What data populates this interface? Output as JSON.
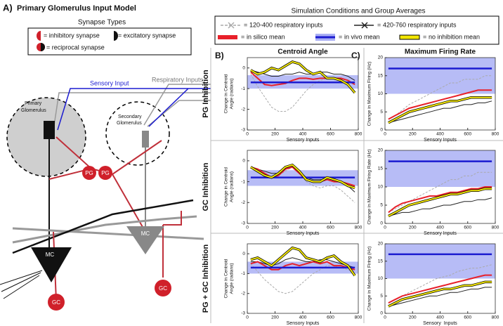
{
  "figure": {
    "panel_a": {
      "letter": "A)",
      "title": "Primary Glomerulus Input Model",
      "synapse_title": "Synapse Types",
      "synapses": [
        "= inhibitory synapse",
        "= excitatory synapse",
        "= reciprocal synapse"
      ],
      "inputs": [
        "Respiratory Inputs",
        "Sensory Input"
      ],
      "glomeruli": [
        [
          "Primary",
          "Glomerulus"
        ],
        [
          "Secondary",
          "Glomerulus"
        ]
      ],
      "cells": [
        "PG",
        "PG",
        "MC",
        "MC",
        "GC",
        "GC"
      ]
    },
    "legend_title": "Simulation Conditions and Group Averages",
    "panels": [
      "B)",
      "C)"
    ],
    "rows": [
      "PG Inhibition",
      "GC Inhibition",
      "PG + GC Inhibition"
    ]
  },
  "chart_data": [
    {
      "type": "line",
      "title": "Centroid Angle",
      "ylabel": [
        "Change in Centroid",
        "Angle (radians)"
      ],
      "xlabel": "Sensory Inputs",
      "x": [
        25,
        75,
        125,
        175,
        225,
        275,
        325,
        375,
        425,
        475,
        525,
        575,
        625,
        675,
        725,
        775
      ],
      "xlim": [
        0,
        800
      ],
      "xticks": [
        0,
        200,
        400,
        600,
        800
      ],
      "ylim": [
        -3,
        0.5
      ],
      "yticks": [
        -3,
        -2,
        -1,
        0
      ],
      "series": [
        {
          "name": "120-400 respiratory inputs",
          "color": "#aaaaaa",
          "values": [
            -0.3,
            -0.9,
            -1.4,
            -1.9,
            -2.1,
            -2.1,
            -1.9,
            -1.5,
            -1.1,
            -0.8,
            -0.6,
            -0.5,
            -0.5,
            -0.6,
            -0.7,
            -0.8
          ]
        },
        {
          "name": "420-760 respiratory inputs",
          "color": "#222222",
          "values": [
            -0.1,
            -0.2,
            -0.3,
            -0.4,
            -0.4,
            -0.3,
            -0.3,
            -0.2,
            -0.3,
            -0.3,
            -0.2,
            -0.2,
            -0.3,
            -0.3,
            -0.4,
            -0.6
          ]
        },
        {
          "name": "in silico mean",
          "color": "#e8202a",
          "values": [
            -0.2,
            -0.5,
            -0.8,
            -0.85,
            -0.8,
            -0.75,
            -0.6,
            -0.5,
            -0.5,
            -0.55,
            -0.5,
            -0.5,
            -0.5,
            -0.5,
            -0.6,
            -0.8
          ]
        },
        {
          "name": "in vivo mean",
          "color": "#1b1bd0",
          "band": [
            -1,
            -0.35
          ],
          "values": [
            -0.7,
            -0.7,
            -0.7,
            -0.7,
            -0.7,
            -0.7,
            -0.7,
            -0.7,
            -0.7,
            -0.7,
            -0.7,
            -0.7,
            -0.7,
            -0.7,
            -0.7,
            -0.7
          ]
        },
        {
          "name": "no inhibition mean",
          "color": "#f2e600",
          "values": [
            -0.1,
            -0.3,
            -0.2,
            0,
            -0.1,
            0.1,
            0.3,
            0.2,
            -0.1,
            -0.3,
            -0.2,
            -0.5,
            -0.5,
            -0.6,
            -0.8,
            -1.2
          ]
        }
      ]
    },
    {
      "type": "line",
      "title": "Maximum Firing Rate",
      "ylabel": [
        "Change in Maximum Firing (Hz)"
      ],
      "xlabel": "Sensory Inputs",
      "x": [
        25,
        75,
        125,
        175,
        225,
        275,
        325,
        375,
        425,
        475,
        525,
        575,
        625,
        675,
        725,
        775
      ],
      "xlim": [
        0,
        800
      ],
      "xticks": [
        0,
        200,
        400,
        600,
        800
      ],
      "ylim": [
        0,
        20
      ],
      "yticks": [
        0,
        5,
        10,
        15,
        20
      ],
      "series": [
        {
          "color": "#aaaaaa",
          "values": [
            3,
            4,
            5.5,
            7,
            8,
            9,
            10,
            11,
            12,
            13,
            13,
            14,
            14,
            14,
            15,
            15
          ]
        },
        {
          "color": "#222222",
          "values": [
            2,
            2.5,
            3,
            3.5,
            4,
            4.5,
            5,
            5.5,
            6,
            6,
            6.5,
            7,
            7,
            7.5,
            7.5,
            8
          ]
        },
        {
          "color": "#e8202a",
          "values": [
            3,
            4,
            5,
            6,
            6.5,
            7,
            7.5,
            8,
            8.5,
            9,
            9.5,
            10,
            10.5,
            11,
            11,
            11
          ]
        },
        {
          "color": "#1b1bd0",
          "band": [
            10,
            20
          ],
          "values": [
            17,
            17,
            17,
            17,
            17,
            17,
            17,
            17,
            17,
            17,
            17,
            17,
            17,
            17,
            17,
            17
          ]
        },
        {
          "color": "#f2e600",
          "values": [
            2,
            3,
            4,
            5,
            5.5,
            6,
            6.5,
            7,
            7.5,
            8,
            8,
            8.5,
            9,
            9,
            9,
            9
          ]
        }
      ]
    },
    {
      "type": "line",
      "ylabel": [
        "Change in Centroid",
        "Angle (radians)"
      ],
      "xlabel": "Sensory Inputs",
      "x": [
        25,
        75,
        125,
        175,
        225,
        275,
        325,
        375,
        425,
        475,
        525,
        575,
        625,
        675,
        725,
        775
      ],
      "xlim": [
        0,
        800
      ],
      "xticks": [
        0,
        200,
        400,
        600,
        800
      ],
      "ylim": [
        -3,
        0.5
      ],
      "yticks": [
        -3,
        -2,
        -1,
        0
      ],
      "series": [
        {
          "color": "#aaaaaa",
          "values": [
            -0.3,
            -0.4,
            -0.6,
            -0.8,
            -0.7,
            -0.5,
            -0.3,
            -0.6,
            -1.0,
            -1.2,
            -1.3,
            -1.2,
            -1.2,
            -1.4,
            -1.7,
            -2.0
          ]
        },
        {
          "color": "#222222",
          "values": [
            -0.3,
            -0.4,
            -0.5,
            -0.6,
            -0.6,
            -0.4,
            -0.2,
            -0.5,
            -0.8,
            -0.9,
            -0.9,
            -0.9,
            -1.0,
            -1.0,
            -1.2,
            -1.5
          ]
        },
        {
          "color": "#e8202a",
          "values": [
            -0.3,
            -0.4,
            -0.6,
            -0.8,
            -0.7,
            -0.4,
            -0.3,
            -0.6,
            -0.9,
            -1.0,
            -1.0,
            -0.9,
            -1.0,
            -1.0,
            -1.1,
            -1.2
          ]
        },
        {
          "color": "#1b1bd0",
          "band": [
            -1.2,
            -0.45
          ],
          "values": [
            -0.8,
            -0.8,
            -0.8,
            -0.8,
            -0.8,
            -0.8,
            -0.8,
            -0.8,
            -0.8,
            -0.8,
            -0.8,
            -0.8,
            -0.8,
            -0.8,
            -0.8,
            -0.8
          ]
        },
        {
          "color": "#f2e600",
          "values": [
            -0.3,
            -0.5,
            -0.7,
            -0.8,
            -0.6,
            -0.3,
            -0.2,
            -0.5,
            -0.9,
            -1.0,
            -1.0,
            -0.8,
            -0.9,
            -1.0,
            -1.2,
            -1.3
          ]
        }
      ]
    },
    {
      "type": "line",
      "ylabel": [
        "Change in Maximum Firing Rate (Hz)"
      ],
      "xlabel": "Sensory Inputs",
      "x": [
        25,
        75,
        125,
        175,
        225,
        275,
        325,
        375,
        425,
        475,
        525,
        575,
        625,
        675,
        725,
        775
      ],
      "xlim": [
        0,
        800
      ],
      "xticks": [
        0,
        200,
        400,
        600,
        800
      ],
      "ylim": [
        0,
        20
      ],
      "yticks": [
        0,
        5,
        10,
        15,
        20
      ],
      "series": [
        {
          "color": "#aaaaaa",
          "values": [
            3,
            4,
            5,
            6,
            7,
            8,
            9,
            10,
            11,
            12,
            12,
            13,
            13,
            14,
            14,
            14
          ]
        },
        {
          "color": "#222222",
          "values": [
            2,
            2.5,
            3,
            3,
            3.5,
            4,
            4,
            4.5,
            5,
            5,
            5.5,
            6,
            6,
            6.5,
            6.5,
            7
          ]
        },
        {
          "color": "#e8202a",
          "values": [
            3,
            4.5,
            5.5,
            6,
            6.5,
            7,
            7.5,
            7.5,
            8,
            8.5,
            8.5,
            9,
            9.5,
            9.5,
            10,
            10
          ]
        },
        {
          "color": "#1b1bd0",
          "band": [
            10,
            20
          ],
          "values": [
            17,
            17,
            17,
            17,
            17,
            17,
            17,
            17,
            17,
            17,
            17,
            17,
            17,
            17,
            17,
            17
          ]
        },
        {
          "color": "#f2e600",
          "values": [
            2,
            3,
            4,
            5,
            5.5,
            6,
            6.5,
            7,
            7.5,
            8,
            8,
            8.5,
            9,
            9,
            9.5,
            9.5
          ]
        }
      ]
    },
    {
      "type": "line",
      "ylabel": [
        "Change in Centroid",
        "Angle (radians)"
      ],
      "xlabel": "Sensory Inputs",
      "x": [
        25,
        75,
        125,
        175,
        225,
        275,
        325,
        375,
        425,
        475,
        525,
        575,
        625,
        675,
        725,
        775
      ],
      "xlim": [
        0,
        800
      ],
      "xticks": [
        0,
        200,
        400,
        600,
        800
      ],
      "ylim": [
        -3,
        0.5
      ],
      "yticks": [
        -3,
        -2,
        -1,
        0
      ],
      "series": [
        {
          "color": "#aaaaaa",
          "values": [
            -0.5,
            -0.9,
            -1.3,
            -1.6,
            -1.9,
            -2.0,
            -1.9,
            -1.6,
            -1.3,
            -1.0,
            -0.8,
            -0.6,
            -0.6,
            -0.7,
            -0.8,
            -0.9
          ]
        },
        {
          "color": "#222222",
          "values": [
            -0.4,
            -0.4,
            -0.5,
            -0.6,
            -0.5,
            -0.3,
            -0.2,
            -0.3,
            -0.4,
            -0.4,
            -0.3,
            -0.3,
            -0.4,
            -0.5,
            -0.6,
            -0.7
          ]
        },
        {
          "color": "#e8202a",
          "values": [
            -0.5,
            -0.4,
            -0.6,
            -0.8,
            -0.8,
            -0.6,
            -0.5,
            -0.6,
            -0.5,
            -0.4,
            -0.5,
            -0.4,
            -0.6,
            -0.6,
            -0.7,
            -0.8
          ]
        },
        {
          "color": "#1b1bd0",
          "band": [
            -1,
            -0.4
          ],
          "values": [
            -0.7,
            -0.7,
            -0.7,
            -0.7,
            -0.7,
            -0.7,
            -0.7,
            -0.7,
            -0.7,
            -0.7,
            -0.7,
            -0.7,
            -0.7,
            -0.7,
            -0.7,
            -0.7
          ]
        },
        {
          "color": "#f2e600",
          "values": [
            -0.3,
            -0.2,
            -0.4,
            -0.6,
            -0.3,
            0,
            0.3,
            0.2,
            -0.2,
            -0.3,
            -0.4,
            -0.2,
            -0.1,
            -0.4,
            -0.6,
            -1.1
          ]
        }
      ]
    },
    {
      "type": "line",
      "ylabel": [
        "Change in Maximum Firing (Hz)"
      ],
      "xlabel": "Sensory  Inputs",
      "x": [
        25,
        75,
        125,
        175,
        225,
        275,
        325,
        375,
        425,
        475,
        525,
        575,
        625,
        675,
        725,
        775
      ],
      "xlim": [
        0,
        800
      ],
      "xticks": [
        0,
        200,
        400,
        600,
        800
      ],
      "ylim": [
        0,
        20
      ],
      "yticks": [
        0,
        5,
        10,
        15,
        20
      ],
      "series": [
        {
          "color": "#aaaaaa",
          "values": [
            3,
            4,
            5,
            6,
            7,
            8,
            9,
            10,
            10.5,
            11,
            12,
            12.5,
            13,
            13,
            13.5,
            14
          ]
        },
        {
          "color": "#222222",
          "values": [
            2,
            2.5,
            3,
            3.5,
            4,
            4.5,
            5,
            5,
            5.5,
            6,
            6,
            6.5,
            7,
            7,
            7.5,
            7.5
          ]
        },
        {
          "color": "#e8202a",
          "values": [
            3,
            4,
            5,
            5.5,
            6,
            6.5,
            7,
            7.5,
            8,
            8.5,
            9,
            9.5,
            10,
            10.5,
            11,
            11
          ]
        },
        {
          "color": "#1b1bd0",
          "band": [
            10,
            20
          ],
          "values": [
            17,
            17,
            17,
            17,
            17,
            17,
            17,
            17,
            17,
            17,
            17,
            17,
            17,
            17,
            17,
            17
          ]
        },
        {
          "color": "#f2e600",
          "values": [
            2,
            3,
            4,
            4.5,
            5,
            5.5,
            6,
            6.5,
            7,
            7,
            7.5,
            8,
            8,
            8.5,
            9,
            9
          ]
        }
      ]
    }
  ]
}
